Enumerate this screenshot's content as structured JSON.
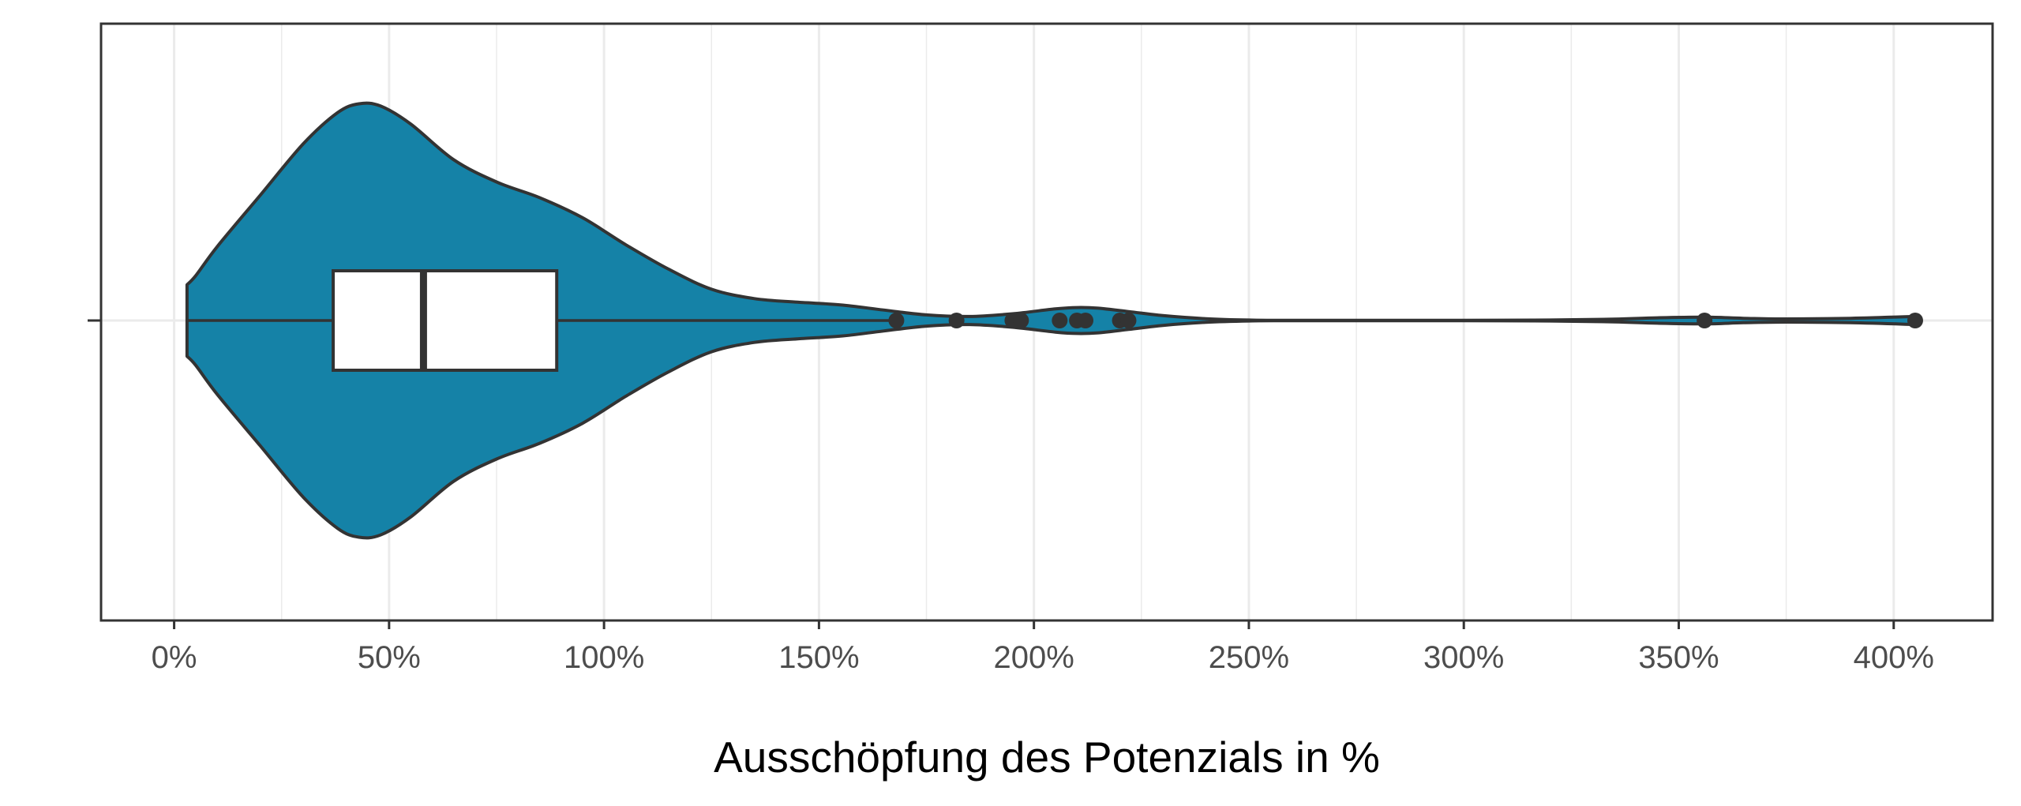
{
  "chart_data": {
    "type": "violin",
    "title": "",
    "xlabel": "Ausschöpfung des Potenzials in %",
    "ylabel": "",
    "xlim": [
      -17,
      423
    ],
    "x_ticks": [
      0,
      50,
      100,
      150,
      200,
      250,
      300,
      350,
      400
    ],
    "x_tick_labels": [
      "0%",
      "50%",
      "100%",
      "150%",
      "200%",
      "250%",
      "300%",
      "350%",
      "400%"
    ],
    "x_minor_ticks": [
      25,
      75,
      125,
      175,
      225,
      275,
      325,
      375
    ],
    "grid": true,
    "legend": "none",
    "colors": {
      "violin_fill": "#1582a7",
      "outline": "#333333",
      "box_fill": "#ffffff",
      "grid": "#ebebeb",
      "panel_border": "#333333"
    },
    "boxplot": {
      "min": 3,
      "q1": 37,
      "median": 58,
      "q3": 89,
      "whisker_high": 168,
      "outliers": [
        168,
        182,
        195,
        197,
        206,
        210,
        212,
        220,
        222,
        356,
        405
      ]
    },
    "density": [
      [
        3,
        0.16
      ],
      [
        5,
        0.2
      ],
      [
        10,
        0.33
      ],
      [
        20,
        0.56
      ],
      [
        30,
        0.79
      ],
      [
        38,
        0.93
      ],
      [
        43,
        0.97
      ],
      [
        48,
        0.96
      ],
      [
        55,
        0.88
      ],
      [
        65,
        0.72
      ],
      [
        75,
        0.62
      ],
      [
        85,
        0.55
      ],
      [
        95,
        0.46
      ],
      [
        105,
        0.34
      ],
      [
        115,
        0.23
      ],
      [
        125,
        0.14
      ],
      [
        135,
        0.098
      ],
      [
        145,
        0.082
      ],
      [
        155,
        0.07
      ],
      [
        165,
        0.047
      ],
      [
        175,
        0.025
      ],
      [
        185,
        0.018
      ],
      [
        195,
        0.03
      ],
      [
        205,
        0.052
      ],
      [
        210,
        0.058
      ],
      [
        215,
        0.055
      ],
      [
        222,
        0.04
      ],
      [
        230,
        0.022
      ],
      [
        240,
        0.008
      ],
      [
        250,
        0.002
      ],
      [
        260,
        0.001
      ],
      [
        300,
        0.001
      ],
      [
        320,
        0.002
      ],
      [
        335,
        0.006
      ],
      [
        345,
        0.012
      ],
      [
        356,
        0.015
      ],
      [
        365,
        0.01
      ],
      [
        375,
        0.007
      ],
      [
        390,
        0.01
      ],
      [
        405,
        0.018
      ]
    ]
  }
}
